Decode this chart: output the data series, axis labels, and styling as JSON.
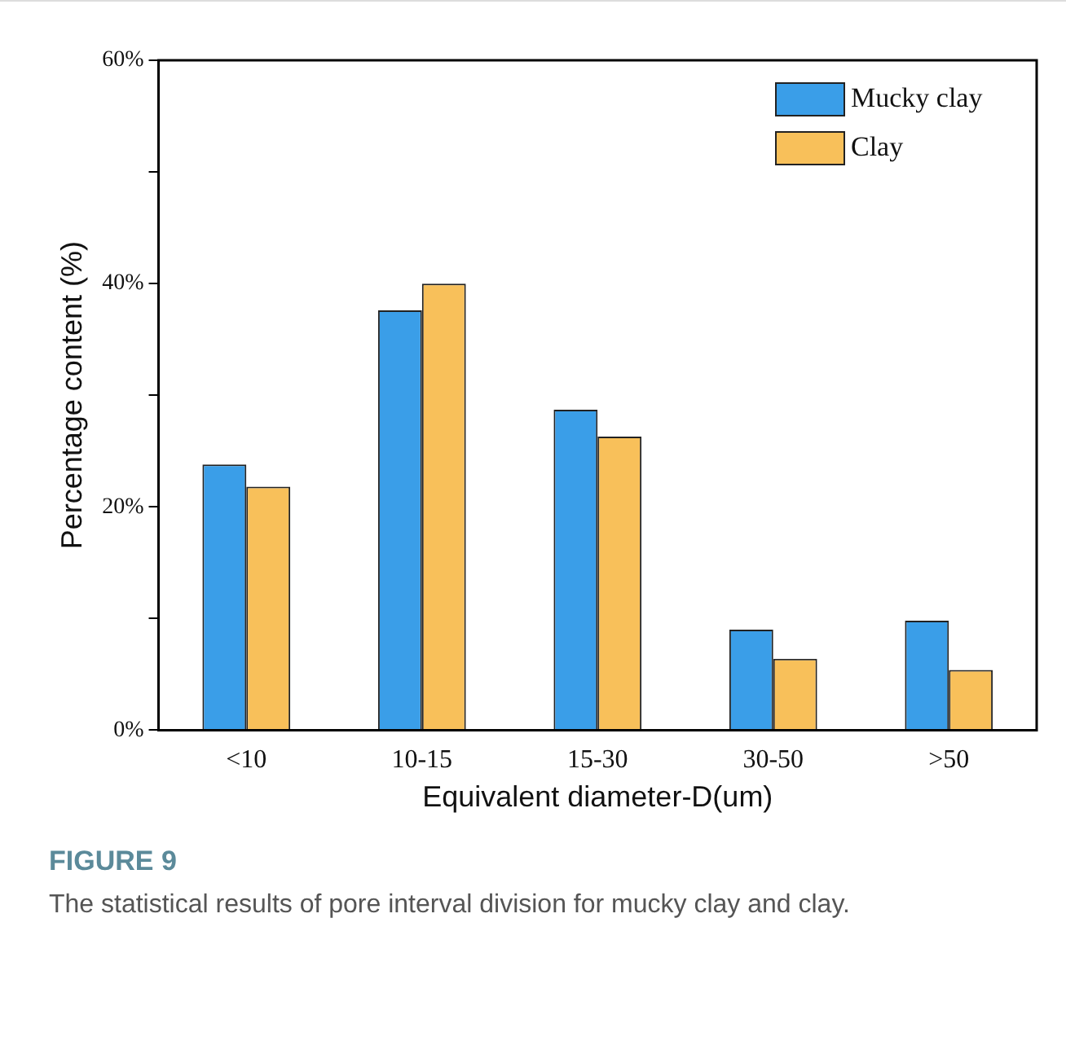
{
  "chart_data": {
    "type": "bar",
    "xlabel": "Equivalent diameter-D(um)",
    "ylabel": "Percentage content (%)",
    "categories": [
      "<10",
      "10-15",
      "15-30",
      "30-50",
      ">50"
    ],
    "series": [
      {
        "name": "Mucky clay",
        "color": "#3a9ee8",
        "values": [
          23.8,
          37.6,
          28.7,
          9.0,
          9.8
        ]
      },
      {
        "name": "Clay",
        "color": "#f8c05a",
        "values": [
          21.8,
          40.0,
          26.3,
          6.4,
          5.4
        ]
      }
    ],
    "ylim": [
      0,
      60
    ],
    "yticks": [
      {
        "value": 0,
        "label": "0%"
      },
      {
        "value": 10,
        "label": null
      },
      {
        "value": 20,
        "label": "20%"
      },
      {
        "value": 30,
        "label": null
      },
      {
        "value": 40,
        "label": "40%"
      },
      {
        "value": 50,
        "label": null
      },
      {
        "value": 60,
        "label": "60%"
      }
    ],
    "grid": false,
    "legend": "top right",
    "annotations": [
      "FIGURE 9",
      "The statistical results of pore interval division for mucky clay and clay."
    ]
  }
}
